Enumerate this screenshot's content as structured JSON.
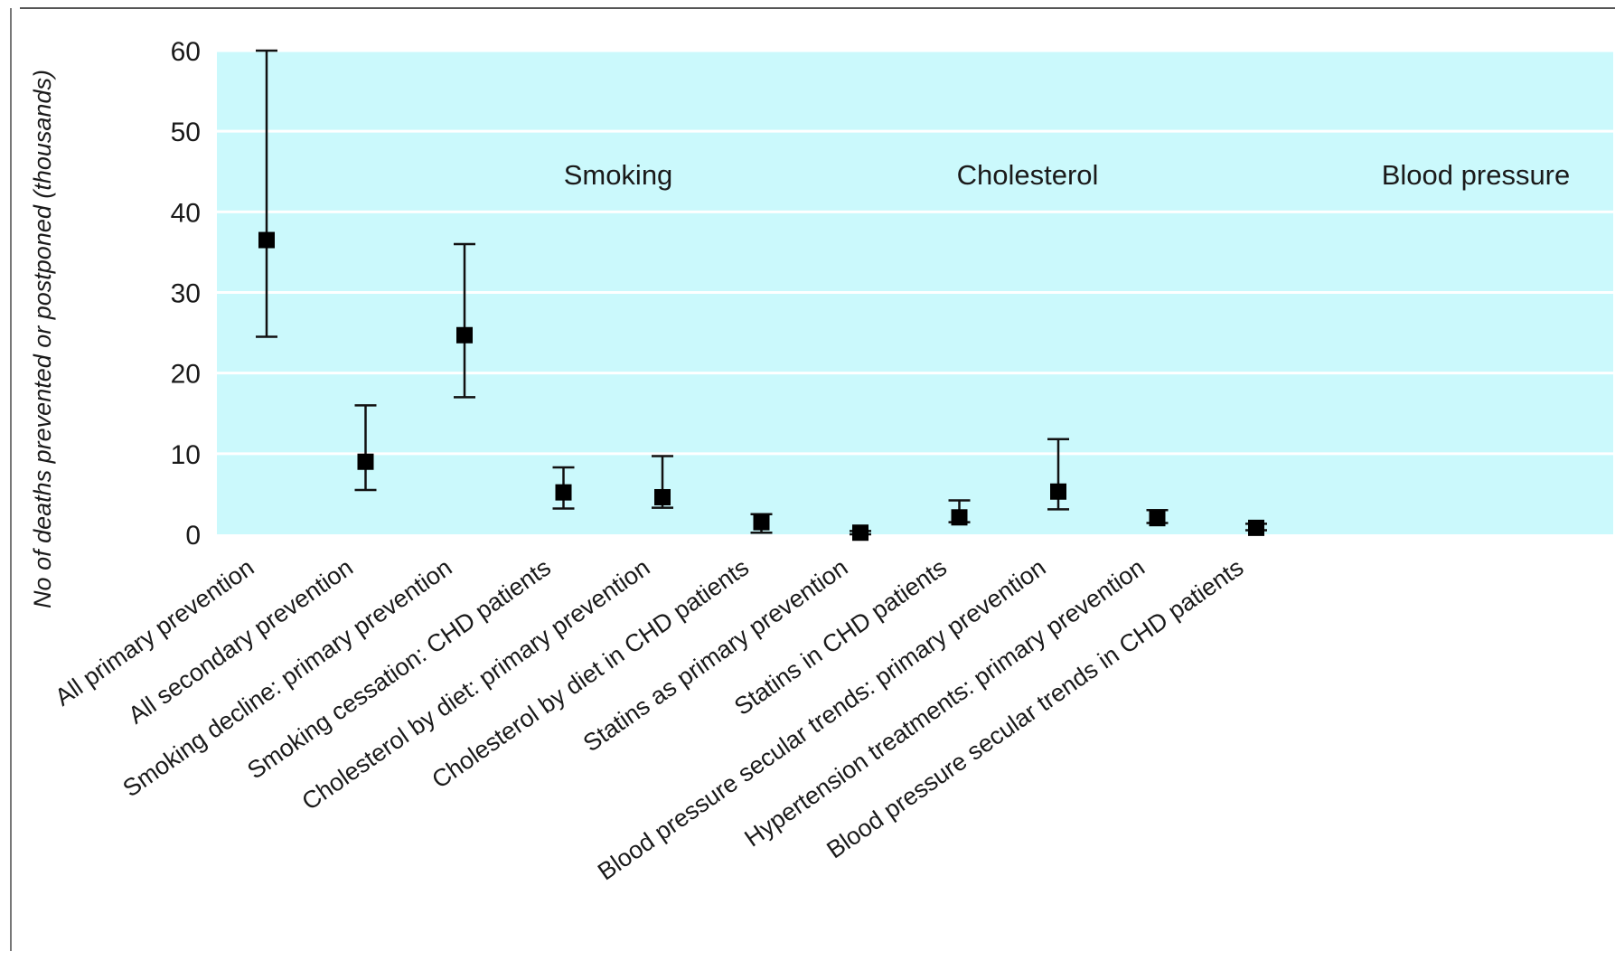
{
  "chart_data": {
    "type": "scatter",
    "error_bars": true,
    "title": "",
    "xlabel": "",
    "ylabel": "No of deaths prevented or postponed (thousands)",
    "ylim": [
      0,
      60
    ],
    "yticks": [
      0,
      10,
      20,
      30,
      40,
      50,
      60
    ],
    "grid": "horizontal",
    "plot_background": "#cbf9fc",
    "marker_color": "#000000",
    "categories": [
      "All primary prevention",
      "All secondary prevention",
      "Smoking decline: primary prevention",
      "Smoking cessation: CHD patients",
      "Cholesterol by diet: primary prevention",
      "Cholesterol by diet in CHD patients",
      "Statins as primary prevention",
      "Statins in CHD patients",
      "Blood pressure secular trends: primary prevention",
      "Hypertension treatments: primary prevention",
      "Blood pressure secular trends in CHD patients"
    ],
    "points": [
      {
        "value": 36.5,
        "low": 24.5,
        "high": 60.0
      },
      {
        "value": 9.0,
        "low": 5.5,
        "high": 16.0
      },
      {
        "value": 24.7,
        "low": 17.0,
        "high": 36.0
      },
      {
        "value": 5.2,
        "low": 3.2,
        "high": 8.3
      },
      {
        "value": 4.6,
        "low": 3.3,
        "high": 9.7
      },
      {
        "value": 1.5,
        "low": 0.2,
        "high": 2.5
      },
      {
        "value": 0.2,
        "low": 0.0,
        "high": 0.4
      },
      {
        "value": 2.1,
        "low": 1.5,
        "high": 4.2
      },
      {
        "value": 5.3,
        "low": 3.1,
        "high": 11.8
      },
      {
        "value": 2.0,
        "low": 1.4,
        "high": 3.0
      },
      {
        "value": 0.8,
        "low": 0.5,
        "high": 1.3
      }
    ],
    "group_labels": [
      "Smoking",
      "Cholesterol",
      "Blood pressure"
    ]
  }
}
